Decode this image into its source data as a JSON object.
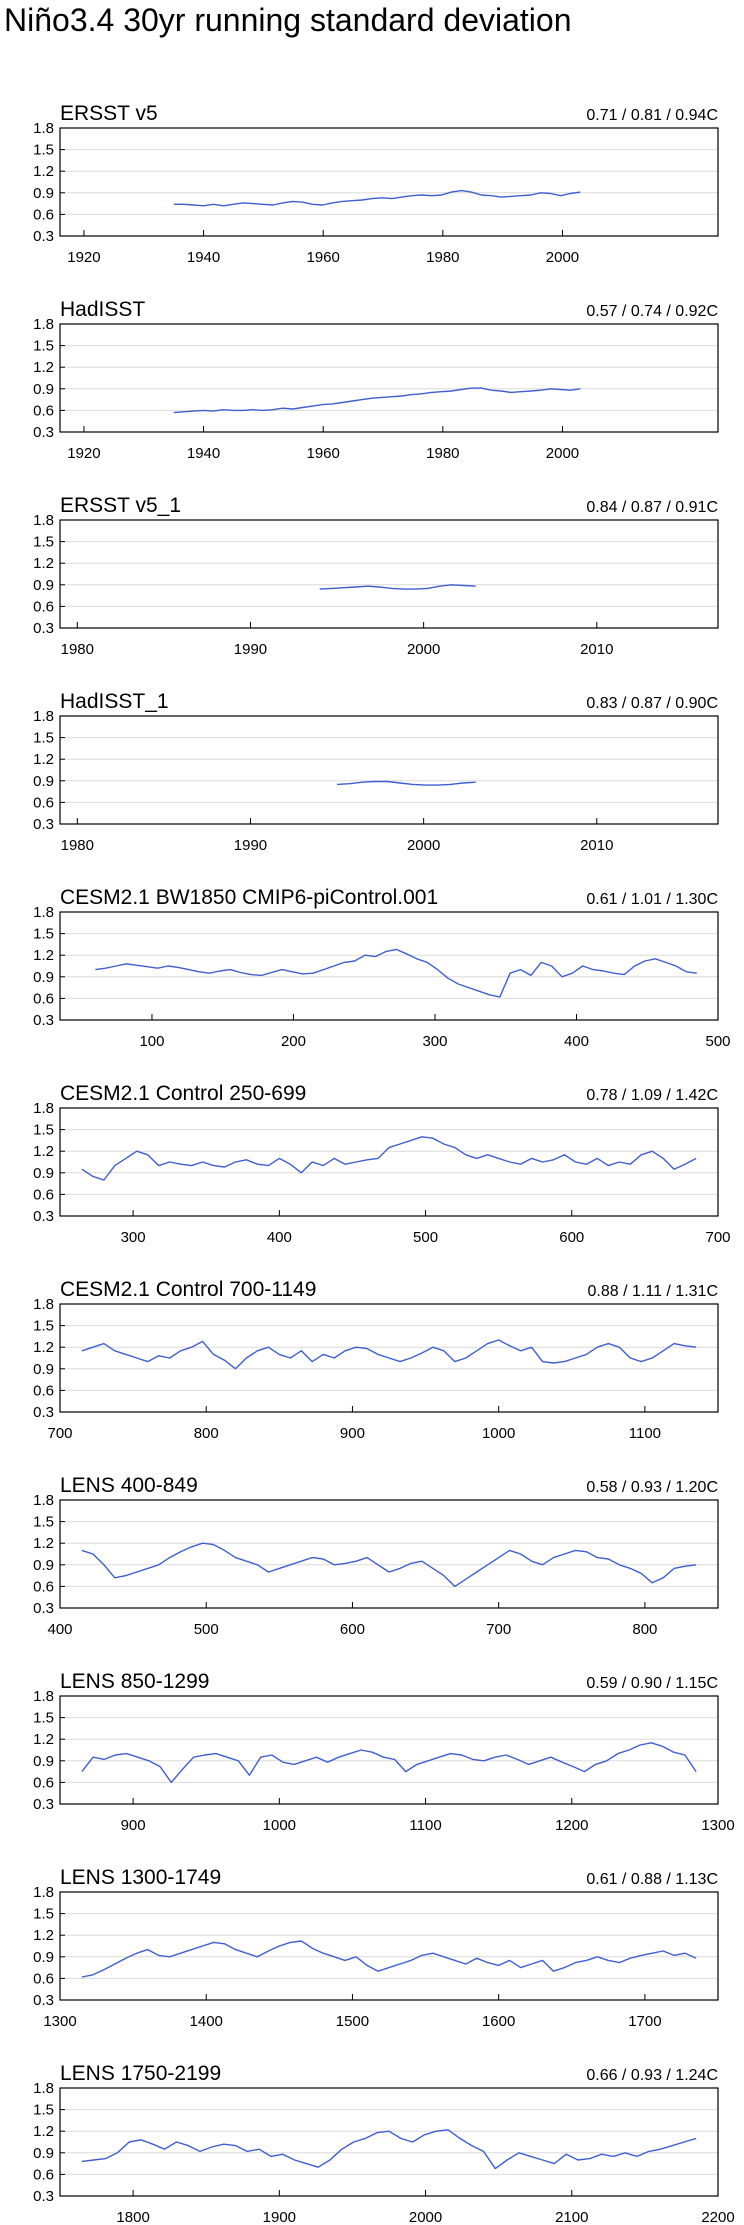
{
  "title": "Niño3.4 30yr running standard deviation",
  "colors": {
    "series": "#3f5fd0",
    "grid": "#dcdcdc",
    "axis": "#000000"
  },
  "chart_data": [
    {
      "type": "line",
      "label": "ERSST v5",
      "stats": "0.71 / 0.81 / 0.94C",
      "xlim": [
        1916,
        2026
      ],
      "xticks": [
        1920,
        1940,
        1960,
        1980,
        2000
      ],
      "ylim": [
        0.3,
        1.8
      ],
      "yticks": [
        "0.3",
        "0.6",
        "0.9",
        "1.2",
        "1.5",
        "1.8"
      ],
      "x_start": 1935,
      "x_end": 2003,
      "points": [
        0.74,
        0.74,
        0.73,
        0.72,
        0.74,
        0.72,
        0.74,
        0.76,
        0.75,
        0.74,
        0.73,
        0.76,
        0.78,
        0.77,
        0.74,
        0.73,
        0.76,
        0.78,
        0.79,
        0.8,
        0.82,
        0.83,
        0.82,
        0.84,
        0.86,
        0.87,
        0.86,
        0.87,
        0.91,
        0.93,
        0.91,
        0.87,
        0.86,
        0.84,
        0.85,
        0.86,
        0.87,
        0.9,
        0.89,
        0.86,
        0.89,
        0.91
      ]
    },
    {
      "type": "line",
      "label": "HadISST",
      "stats": "0.57 / 0.74 / 0.92C",
      "xlim": [
        1916,
        2026
      ],
      "xticks": [
        1920,
        1940,
        1960,
        1980,
        2000
      ],
      "ylim": [
        0.3,
        1.8
      ],
      "yticks": [
        "0.3",
        "0.6",
        "0.9",
        "1.2",
        "1.5",
        "1.8"
      ],
      "x_start": 1935,
      "x_end": 2003,
      "points": [
        0.57,
        0.58,
        0.59,
        0.6,
        0.59,
        0.61,
        0.6,
        0.6,
        0.61,
        0.6,
        0.61,
        0.63,
        0.62,
        0.64,
        0.66,
        0.68,
        0.69,
        0.71,
        0.73,
        0.75,
        0.77,
        0.78,
        0.79,
        0.8,
        0.82,
        0.83,
        0.85,
        0.86,
        0.87,
        0.89,
        0.91,
        0.91,
        0.88,
        0.87,
        0.85,
        0.86,
        0.87,
        0.88,
        0.9,
        0.89,
        0.88,
        0.9
      ]
    },
    {
      "type": "line",
      "label": "ERSST v5_1",
      "stats": "0.84 / 0.87 / 0.91C",
      "xlim": [
        1979,
        2017
      ],
      "xticks": [
        1980,
        1990,
        2000,
        2010
      ],
      "ylim": [
        0.3,
        1.8
      ],
      "yticks": [
        "0.3",
        "0.6",
        "0.9",
        "1.2",
        "1.5",
        "1.8"
      ],
      "x_start": 1994,
      "x_end": 2003,
      "points": [
        0.84,
        0.85,
        0.86,
        0.87,
        0.88,
        0.87,
        0.85,
        0.84,
        0.84,
        0.85,
        0.88,
        0.9,
        0.89,
        0.88
      ]
    },
    {
      "type": "line",
      "label": "HadISST_1",
      "stats": "0.83 / 0.87 / 0.90C",
      "xlim": [
        1979,
        2017
      ],
      "xticks": [
        1980,
        1990,
        2000,
        2010
      ],
      "ylim": [
        0.3,
        1.8
      ],
      "yticks": [
        "0.3",
        "0.6",
        "0.9",
        "1.2",
        "1.5",
        "1.8"
      ],
      "x_start": 1995,
      "x_end": 2003,
      "points": [
        0.85,
        0.86,
        0.88,
        0.89,
        0.89,
        0.87,
        0.85,
        0.84,
        0.84,
        0.85,
        0.87,
        0.88
      ]
    },
    {
      "type": "line",
      "label": "CESM2.1 BW1850 CMIP6-piControl.001",
      "stats": "0.61 / 1.01 / 1.30C",
      "xlim": [
        35,
        500
      ],
      "xticks": [
        100,
        200,
        300,
        400,
        500
      ],
      "ylim": [
        0.3,
        1.8
      ],
      "yticks": [
        "0.3",
        "0.6",
        "0.9",
        "1.2",
        "1.5",
        "1.8"
      ],
      "x_start": 60,
      "x_end": 485,
      "points": [
        1.0,
        1.02,
        1.05,
        1.08,
        1.06,
        1.04,
        1.02,
        1.05,
        1.03,
        1.0,
        0.97,
        0.95,
        0.98,
        1.0,
        0.96,
        0.93,
        0.92,
        0.96,
        1.0,
        0.97,
        0.94,
        0.95,
        1.0,
        1.05,
        1.1,
        1.12,
        1.2,
        1.18,
        1.25,
        1.28,
        1.22,
        1.15,
        1.1,
        1.0,
        0.88,
        0.8,
        0.75,
        0.7,
        0.65,
        0.62,
        0.95,
        1.0,
        0.92,
        1.1,
        1.05,
        0.9,
        0.95,
        1.05,
        1.0,
        0.98,
        0.95,
        0.93,
        1.05,
        1.12,
        1.15,
        1.1,
        1.05,
        0.97,
        0.95
      ]
    },
    {
      "type": "line",
      "label": "CESM2.1 Control 250-699",
      "stats": "0.78 / 1.09 / 1.42C",
      "xlim": [
        250,
        700
      ],
      "xticks": [
        300,
        400,
        500,
        600,
        700
      ],
      "ylim": [
        0.3,
        1.8
      ],
      "yticks": [
        "0.3",
        "0.6",
        "0.9",
        "1.2",
        "1.5",
        "1.8"
      ],
      "x_start": 265,
      "x_end": 685,
      "points": [
        0.95,
        0.85,
        0.8,
        1.0,
        1.1,
        1.2,
        1.15,
        1.0,
        1.05,
        1.02,
        1.0,
        1.05,
        1.0,
        0.98,
        1.05,
        1.08,
        1.02,
        1.0,
        1.1,
        1.02,
        0.9,
        1.05,
        1.0,
        1.1,
        1.02,
        1.05,
        1.08,
        1.1,
        1.25,
        1.3,
        1.35,
        1.4,
        1.38,
        1.3,
        1.25,
        1.15,
        1.1,
        1.15,
        1.1,
        1.05,
        1.02,
        1.1,
        1.05,
        1.08,
        1.15,
        1.05,
        1.02,
        1.1,
        1.0,
        1.05,
        1.02,
        1.15,
        1.2,
        1.1,
        0.95,
        1.02,
        1.1
      ]
    },
    {
      "type": "line",
      "label": "CESM2.1 Control 700-1149",
      "stats": "0.88 / 1.11 / 1.31C",
      "xlim": [
        700,
        1150
      ],
      "xticks": [
        700,
        800,
        900,
        1000,
        1100
      ],
      "ylim": [
        0.3,
        1.8
      ],
      "yticks": [
        "0.3",
        "0.6",
        "0.9",
        "1.2",
        "1.5",
        "1.8"
      ],
      "x_start": 715,
      "x_end": 1135,
      "points": [
        1.15,
        1.2,
        1.25,
        1.15,
        1.1,
        1.05,
        1.0,
        1.08,
        1.05,
        1.15,
        1.2,
        1.28,
        1.1,
        1.02,
        0.9,
        1.05,
        1.15,
        1.2,
        1.1,
        1.05,
        1.15,
        1.0,
        1.1,
        1.05,
        1.15,
        1.2,
        1.18,
        1.1,
        1.05,
        1.0,
        1.05,
        1.12,
        1.2,
        1.15,
        1.0,
        1.05,
        1.15,
        1.25,
        1.3,
        1.22,
        1.15,
        1.2,
        1.0,
        0.98,
        1.0,
        1.05,
        1.1,
        1.2,
        1.25,
        1.2,
        1.05,
        1.0,
        1.05,
        1.15,
        1.25,
        1.22,
        1.2
      ]
    },
    {
      "type": "line",
      "label": "LENS 400-849",
      "stats": "0.58 / 0.93 / 1.20C",
      "xlim": [
        400,
        850
      ],
      "xticks": [
        400,
        500,
        600,
        700,
        800
      ],
      "ylim": [
        0.3,
        1.8
      ],
      "yticks": [
        "0.3",
        "0.6",
        "0.9",
        "1.2",
        "1.5",
        "1.8"
      ],
      "x_start": 415,
      "x_end": 835,
      "points": [
        1.1,
        1.05,
        0.9,
        0.72,
        0.75,
        0.8,
        0.85,
        0.9,
        1.0,
        1.08,
        1.15,
        1.2,
        1.18,
        1.1,
        1.0,
        0.95,
        0.9,
        0.8,
        0.85,
        0.9,
        0.95,
        1.0,
        0.98,
        0.9,
        0.92,
        0.95,
        1.0,
        0.9,
        0.8,
        0.85,
        0.92,
        0.95,
        0.85,
        0.75,
        0.6,
        0.7,
        0.8,
        0.9,
        1.0,
        1.1,
        1.05,
        0.95,
        0.9,
        1.0,
        1.05,
        1.1,
        1.08,
        1.0,
        0.98,
        0.9,
        0.85,
        0.78,
        0.65,
        0.72,
        0.85,
        0.88,
        0.9
      ]
    },
    {
      "type": "line",
      "label": "LENS 850-1299",
      "stats": "0.59 / 0.90 / 1.15C",
      "xlim": [
        850,
        1300
      ],
      "xticks": [
        900,
        1000,
        1100,
        1200,
        1300
      ],
      "ylim": [
        0.3,
        1.8
      ],
      "yticks": [
        "0.3",
        "0.6",
        "0.9",
        "1.2",
        "1.5",
        "1.8"
      ],
      "x_start": 865,
      "x_end": 1285,
      "points": [
        0.75,
        0.95,
        0.92,
        0.98,
        1.0,
        0.95,
        0.9,
        0.82,
        0.6,
        0.78,
        0.95,
        0.98,
        1.0,
        0.95,
        0.9,
        0.7,
        0.95,
        0.98,
        0.88,
        0.85,
        0.9,
        0.95,
        0.88,
        0.95,
        1.0,
        1.05,
        1.02,
        0.95,
        0.92,
        0.75,
        0.85,
        0.9,
        0.95,
        1.0,
        0.98,
        0.92,
        0.9,
        0.95,
        0.98,
        0.92,
        0.85,
        0.9,
        0.95,
        0.88,
        0.82,
        0.75,
        0.85,
        0.9,
        1.0,
        1.05,
        1.12,
        1.15,
        1.1,
        1.02,
        0.98,
        0.75
      ]
    },
    {
      "type": "line",
      "label": "LENS 1300-1749",
      "stats": "0.61 / 0.88 / 1.13C",
      "xlim": [
        1300,
        1750
      ],
      "xticks": [
        1300,
        1400,
        1500,
        1600,
        1700
      ],
      "ylim": [
        0.3,
        1.8
      ],
      "yticks": [
        "0.3",
        "0.6",
        "0.9",
        "1.2",
        "1.5",
        "1.8"
      ],
      "x_start": 1315,
      "x_end": 1735,
      "points": [
        0.62,
        0.65,
        0.72,
        0.8,
        0.88,
        0.95,
        1.0,
        0.92,
        0.9,
        0.95,
        1.0,
        1.05,
        1.1,
        1.08,
        1.0,
        0.95,
        0.9,
        0.98,
        1.05,
        1.1,
        1.12,
        1.02,
        0.95,
        0.9,
        0.85,
        0.9,
        0.78,
        0.7,
        0.75,
        0.8,
        0.85,
        0.92,
        0.95,
        0.9,
        0.85,
        0.8,
        0.88,
        0.82,
        0.78,
        0.85,
        0.75,
        0.8,
        0.85,
        0.7,
        0.75,
        0.82,
        0.85,
        0.9,
        0.85,
        0.82,
        0.88,
        0.92,
        0.95,
        0.98,
        0.92,
        0.95,
        0.88
      ]
    },
    {
      "type": "line",
      "label": "LENS 1750-2199",
      "stats": "0.66 / 0.93 / 1.24C",
      "xlim": [
        1750,
        2200
      ],
      "xticks": [
        1800,
        1900,
        2000,
        2100,
        2200
      ],
      "ylim": [
        0.3,
        1.8
      ],
      "yticks": [
        "0.3",
        "0.6",
        "0.9",
        "1.2",
        "1.5",
        "1.8"
      ],
      "x_start": 1765,
      "x_end": 2185,
      "points": [
        0.78,
        0.8,
        0.82,
        0.9,
        1.05,
        1.08,
        1.02,
        0.95,
        1.05,
        1.0,
        0.92,
        0.98,
        1.02,
        1.0,
        0.92,
        0.95,
        0.85,
        0.88,
        0.8,
        0.75,
        0.7,
        0.8,
        0.95,
        1.05,
        1.1,
        1.18,
        1.2,
        1.1,
        1.05,
        1.15,
        1.2,
        1.22,
        1.1,
        1.0,
        0.92,
        0.68,
        0.8,
        0.9,
        0.85,
        0.8,
        0.75,
        0.88,
        0.8,
        0.82,
        0.88,
        0.85,
        0.9,
        0.85,
        0.92,
        0.95,
        1.0,
        1.05,
        1.1
      ]
    }
  ]
}
